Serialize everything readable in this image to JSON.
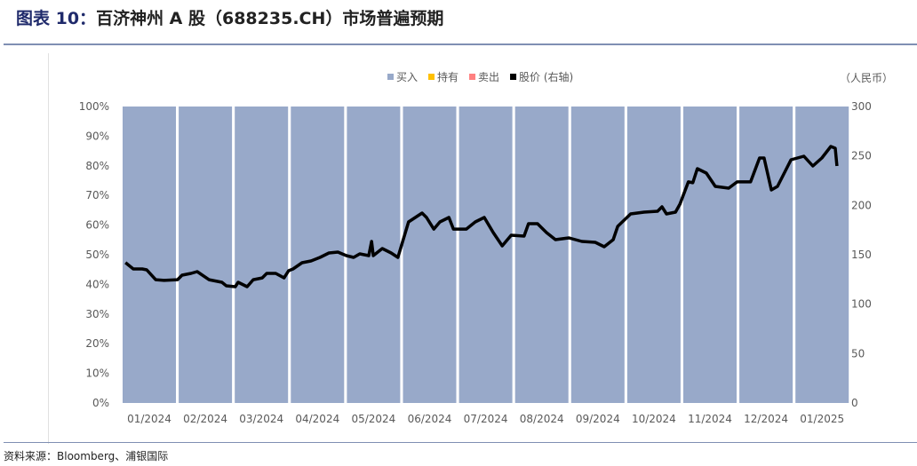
{
  "title_prefix": "图表 10：",
  "title": "百济神州 A 股（688235.CH）市场普遍预期",
  "source": "资料来源：Bloomberg、浦银国际",
  "chart_data": {
    "type": "bar",
    "stacked_percent": true,
    "categories": [
      "01/2024",
      "02/2024",
      "03/2024",
      "04/2024",
      "05/2024",
      "06/2024",
      "07/2024",
      "08/2024",
      "09/2024",
      "10/2024",
      "11/2024",
      "12/2024",
      "01/2025"
    ],
    "series": [
      {
        "name": "买入",
        "color": "#98a9c9",
        "values": [
          100,
          100,
          100,
          100,
          100,
          100,
          100,
          100,
          100,
          100,
          100,
          100,
          100
        ]
      },
      {
        "name": "持有",
        "color": "#ffc000",
        "values": [
          0,
          0,
          0,
          0,
          0,
          0,
          0,
          0,
          0,
          0,
          0,
          0,
          0
        ]
      },
      {
        "name": "卖出",
        "color": "#ff8080",
        "values": [
          0,
          0,
          0,
          0,
          0,
          0,
          0,
          0,
          0,
          0,
          0,
          0,
          0
        ]
      }
    ],
    "line_series": {
      "name": "股价 (右轴)",
      "color": "#000000",
      "axis": "right",
      "points": [
        [
          0.05,
          142
        ],
        [
          0.19,
          135.6
        ],
        [
          0.35,
          135.6
        ],
        [
          0.43,
          134.7
        ],
        [
          0.59,
          124.8
        ],
        [
          0.74,
          124
        ],
        [
          0.98,
          124.8
        ],
        [
          1.06,
          129.3
        ],
        [
          1.22,
          131.1
        ],
        [
          1.33,
          132.9
        ],
        [
          1.54,
          124.8
        ],
        [
          1.77,
          122.2
        ],
        [
          1.85,
          118.6
        ],
        [
          2.01,
          117.7
        ],
        [
          2.06,
          122.2
        ],
        [
          2.22,
          117.7
        ],
        [
          2.33,
          124.8
        ],
        [
          2.49,
          126.6
        ],
        [
          2.57,
          131.1
        ],
        [
          2.73,
          131.1
        ],
        [
          2.88,
          126.6
        ],
        [
          2.96,
          133.8
        ],
        [
          3.04,
          135.6
        ],
        [
          3.2,
          141.9
        ],
        [
          3.36,
          143.7
        ],
        [
          3.52,
          147.3
        ],
        [
          3.68,
          151.8
        ],
        [
          3.84,
          152.7
        ],
        [
          3.99,
          149.1
        ],
        [
          4.12,
          147.3
        ],
        [
          4.23,
          150.9
        ],
        [
          4.39,
          149.1
        ],
        [
          4.44,
          163.5
        ],
        [
          4.47,
          149.1
        ],
        [
          4.63,
          156.3
        ],
        [
          4.79,
          151.8
        ],
        [
          4.91,
          147.3
        ],
        [
          5.1,
          183.2
        ],
        [
          5.34,
          192.2
        ],
        [
          5.42,
          187.7
        ],
        [
          5.55,
          176
        ],
        [
          5.66,
          183.2
        ],
        [
          5.82,
          187.7
        ],
        [
          5.9,
          176
        ],
        [
          6.13,
          176
        ],
        [
          6.29,
          183.2
        ],
        [
          6.45,
          187.7
        ],
        [
          6.61,
          172.5
        ],
        [
          6.77,
          159
        ],
        [
          6.93,
          169.8
        ],
        [
          7.16,
          168.9
        ],
        [
          7.24,
          181.4
        ],
        [
          7.4,
          181.4
        ],
        [
          7.56,
          172.5
        ],
        [
          7.72,
          165.3
        ],
        [
          7.96,
          167.1
        ],
        [
          8.19,
          163.5
        ],
        [
          8.43,
          162.6
        ],
        [
          8.59,
          158.1
        ],
        [
          8.75,
          165.3
        ],
        [
          8.83,
          178.7
        ],
        [
          9.06,
          191.3
        ],
        [
          9.3,
          193.1
        ],
        [
          9.54,
          194
        ],
        [
          9.62,
          198.5
        ],
        [
          9.7,
          191.3
        ],
        [
          9.86,
          193.1
        ],
        [
          9.94,
          201.2
        ],
        [
          10.09,
          223.7
        ],
        [
          10.17,
          222.8
        ],
        [
          10.25,
          237.1
        ],
        [
          10.41,
          232.6
        ],
        [
          10.57,
          219.2
        ],
        [
          10.81,
          217.4
        ],
        [
          10.96,
          223.7
        ],
        [
          11.2,
          223.7
        ],
        [
          11.36,
          247.9
        ],
        [
          11.44,
          247.9
        ],
        [
          11.57,
          215.6
        ],
        [
          11.68,
          219.2
        ],
        [
          11.92,
          246.1
        ],
        [
          12.15,
          249.7
        ],
        [
          12.31,
          239.8
        ],
        [
          12.47,
          247.9
        ],
        [
          12.63,
          259.6
        ],
        [
          12.71,
          257.8
        ],
        [
          12.74,
          239.8
        ]
      ]
    },
    "left_axis": {
      "ticks": [
        "0%",
        "10%",
        "20%",
        "30%",
        "40%",
        "50%",
        "60%",
        "70%",
        "80%",
        "90%",
        "100%"
      ],
      "range": [
        0,
        100
      ]
    },
    "right_axis": {
      "label": "（人民币）",
      "ticks": [
        "0",
        "50",
        "100",
        "150",
        "200",
        "250",
        "300"
      ],
      "range": [
        0,
        300
      ]
    },
    "legend_position": "top-right"
  }
}
